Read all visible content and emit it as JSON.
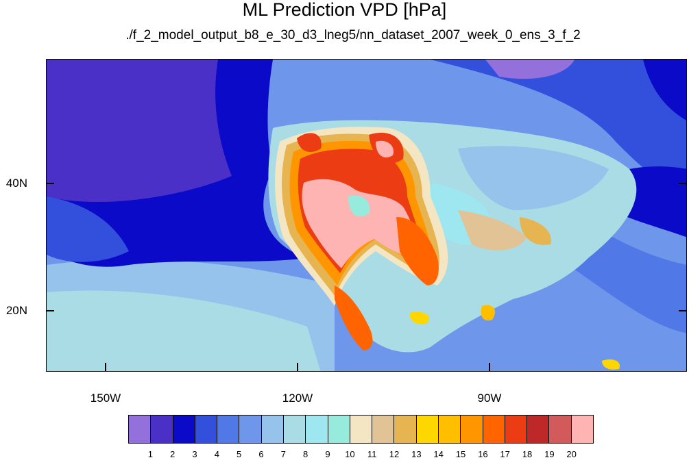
{
  "title": "ML Prediction VPD [hPa]",
  "subtitle": "./f_2_model_output_b8_e_30_d3_lneg5/nn_dataset_2007_week_0_ens_3_f_2",
  "lat_labels": [
    "40N",
    "20N"
  ],
  "lon_labels": [
    "150W",
    "120W",
    "90W"
  ],
  "colorbar": {
    "labels": [
      "1",
      "2",
      "3",
      "4",
      "5",
      "6",
      "7",
      "8",
      "9",
      "10",
      "11",
      "12",
      "13",
      "14",
      "15",
      "16",
      "17",
      "18",
      "19",
      "20"
    ],
    "colors": [
      "#9370db",
      "#4b30c8",
      "#0a0ac8",
      "#3250dc",
      "#5078e6",
      "#6e96eb",
      "#96c3eb",
      "#aadce6",
      "#9ee6f0",
      "#96ebdc",
      "#f5e6c3",
      "#e1c396",
      "#e6b450",
      "#ffd700",
      "#ffbe00",
      "#ff9600",
      "#ff6400",
      "#eb3c14",
      "#be2828",
      "#d25a5a",
      "#ffb4b4"
    ]
  }
}
